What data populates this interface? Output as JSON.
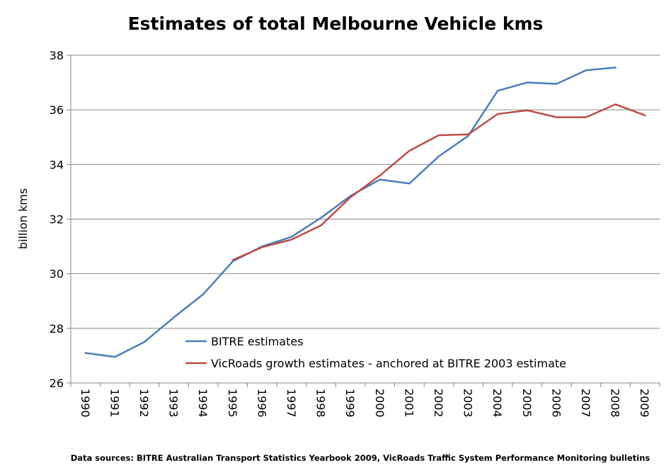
{
  "chart_data": {
    "type": "line",
    "title": "Estimates of total Melbourne Vehicle kms",
    "xlabel": "",
    "ylabel": "billion kms",
    "ylim": [
      26,
      38
    ],
    "yticks": [
      26,
      28,
      30,
      32,
      34,
      36,
      38
    ],
    "grid": true,
    "legend_position": "inside-bottom-right",
    "categories": [
      "1990",
      "1991",
      "1992",
      "1993",
      "1994",
      "1995",
      "1996",
      "1997",
      "1998",
      "1999",
      "2000",
      "2001",
      "2002",
      "2003",
      "2004",
      "2005",
      "2006",
      "2007",
      "2008",
      "2009"
    ],
    "series": [
      {
        "name": "BITRE estimates",
        "color": "#4a7ebb",
        "values": [
          27.1,
          26.95,
          27.5,
          28.4,
          29.25,
          30.45,
          31.0,
          31.35,
          32.05,
          32.85,
          33.45,
          33.3,
          34.3,
          35.05,
          36.7,
          37.0,
          36.95,
          37.45,
          37.55,
          null
        ]
      },
      {
        "name": "VicRoads growth estimates - anchored at BITRE 2003 estimate",
        "color": "#be4b48",
        "values": [
          null,
          null,
          null,
          null,
          null,
          30.5,
          30.97,
          31.25,
          31.77,
          32.8,
          33.6,
          34.5,
          35.07,
          35.1,
          35.85,
          35.98,
          35.73,
          35.73,
          36.2,
          35.8
        ]
      }
    ],
    "source": "Data sources: BITRE Australian Transport Statistics Yearbook 2009, VicRoads Traffic System Performance Monitoring bulletins"
  }
}
